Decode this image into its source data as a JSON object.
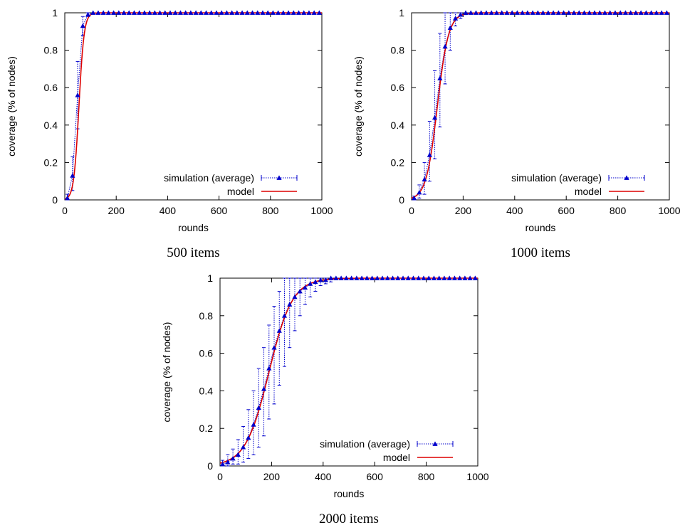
{
  "colors": {
    "simulation": "#0000cc",
    "model": "#dd0000",
    "axis": "#000000"
  },
  "chart_data": [
    {
      "type": "line",
      "caption": "500 items",
      "xlabel": "rounds",
      "ylabel": "coverage (% of nodes)",
      "xlim": [
        0,
        1000
      ],
      "ylim": [
        0,
        1
      ],
      "xticks": [
        "0",
        "200",
        "400",
        "600",
        "800",
        "1000"
      ],
      "yticks": [
        "0",
        "0.2",
        "0.4",
        "0.6",
        "0.8",
        "1"
      ],
      "grid": false,
      "legend_position": "bottom-right",
      "model_midpoint": 55,
      "model_rate": 0.099,
      "series": [
        {
          "name": "simulation (average)",
          "style": "points-with-error-bars",
          "x": [
            10,
            30,
            50,
            70,
            90,
            110,
            130,
            150,
            170,
            190,
            210,
            230,
            250,
            270,
            290,
            310,
            330,
            350,
            370,
            390,
            410,
            430,
            450,
            470,
            490,
            510,
            530,
            550,
            570,
            590,
            610,
            630,
            650,
            670,
            690,
            710,
            730,
            750,
            770,
            790,
            810,
            830,
            850,
            870,
            890,
            910,
            930,
            950,
            970,
            990
          ],
          "y": [
            0.01,
            0.13,
            0.56,
            0.93,
            0.99,
            1.0,
            1.0,
            1.0,
            1.0,
            1.0,
            1.0,
            1.0,
            1.0,
            1.0,
            1.0,
            1.0,
            1.0,
            1.0,
            1.0,
            1.0,
            1.0,
            1.0,
            1.0,
            1.0,
            1.0,
            1.0,
            1.0,
            1.0,
            1.0,
            1.0,
            1.0,
            1.0,
            1.0,
            1.0,
            1.0,
            1.0,
            1.0,
            1.0,
            1.0,
            1.0,
            1.0,
            1.0,
            1.0,
            1.0,
            1.0,
            1.0,
            1.0,
            1.0,
            1.0,
            1.0
          ],
          "err_low": [
            0.0,
            0.05,
            0.38,
            0.88,
            0.98
          ],
          "err_high": [
            0.03,
            0.23,
            0.74,
            0.98,
            1.0
          ]
        },
        {
          "name": "model",
          "style": "line"
        }
      ]
    },
    {
      "type": "line",
      "caption": "1000 items",
      "xlabel": "rounds",
      "ylabel": "coverage (% of nodes)",
      "xlim": [
        0,
        1000
      ],
      "ylim": [
        0,
        1
      ],
      "xticks": [
        "0",
        "200",
        "400",
        "600",
        "800",
        "1000"
      ],
      "yticks": [
        "0",
        "0.2",
        "0.4",
        "0.6",
        "0.8",
        "1"
      ],
      "grid": false,
      "legend_position": "bottom-right",
      "model_midpoint": 100,
      "model_rate": 0.046,
      "series": [
        {
          "name": "simulation (average)",
          "style": "points-with-error-bars",
          "x": [
            10,
            30,
            50,
            70,
            90,
            110,
            130,
            150,
            170,
            190,
            210,
            230,
            250,
            270,
            290,
            310,
            330,
            350,
            370,
            390,
            410,
            430,
            450,
            470,
            490,
            510,
            530,
            550,
            570,
            590,
            610,
            630,
            650,
            670,
            690,
            710,
            730,
            750,
            770,
            790,
            810,
            830,
            850,
            870,
            890,
            910,
            930,
            950,
            970,
            990
          ],
          "y": [
            0.01,
            0.04,
            0.11,
            0.24,
            0.44,
            0.65,
            0.82,
            0.92,
            0.97,
            0.99,
            1.0,
            1.0,
            1.0,
            1.0,
            1.0,
            1.0,
            1.0,
            1.0,
            1.0,
            1.0,
            1.0,
            1.0,
            1.0,
            1.0,
            1.0,
            1.0,
            1.0,
            1.0,
            1.0,
            1.0,
            1.0,
            1.0,
            1.0,
            1.0,
            1.0,
            1.0,
            1.0,
            1.0,
            1.0,
            1.0,
            1.0,
            1.0,
            1.0,
            1.0,
            1.0,
            1.0,
            1.0,
            1.0,
            1.0,
            1.0
          ],
          "err_low": [
            0.0,
            0.01,
            0.03,
            0.1,
            0.22,
            0.39,
            0.62,
            0.8,
            0.93,
            0.97,
            0.99
          ],
          "err_high": [
            0.02,
            0.08,
            0.2,
            0.42,
            0.69,
            0.89,
            1.0,
            1.0,
            1.0,
            1.0,
            1.0
          ]
        },
        {
          "name": "model",
          "style": "line"
        }
      ]
    },
    {
      "type": "line",
      "caption": "2000 items",
      "xlabel": "rounds",
      "ylabel": "coverage (% of nodes)",
      "xlim": [
        0,
        1000
      ],
      "ylim": [
        0,
        1
      ],
      "xticks": [
        "0",
        "200",
        "400",
        "600",
        "800",
        "1000"
      ],
      "yticks": [
        "0",
        "0.2",
        "0.4",
        "0.6",
        "0.8",
        "1"
      ],
      "grid": false,
      "legend_position": "bottom-right",
      "model_midpoint": 190,
      "model_rate": 0.022,
      "series": [
        {
          "name": "simulation (average)",
          "style": "points-with-error-bars",
          "x": [
            10,
            30,
            50,
            70,
            90,
            110,
            130,
            150,
            170,
            190,
            210,
            230,
            250,
            270,
            290,
            310,
            330,
            350,
            370,
            390,
            410,
            430,
            450,
            470,
            490,
            510,
            530,
            550,
            570,
            590,
            610,
            630,
            650,
            670,
            690,
            710,
            730,
            750,
            770,
            790,
            810,
            830,
            850,
            870,
            890,
            910,
            930,
            950,
            970,
            990
          ],
          "y": [
            0.01,
            0.02,
            0.04,
            0.06,
            0.1,
            0.15,
            0.22,
            0.31,
            0.41,
            0.52,
            0.63,
            0.72,
            0.8,
            0.86,
            0.9,
            0.93,
            0.95,
            0.97,
            0.98,
            0.99,
            0.99,
            1.0,
            1.0,
            1.0,
            1.0,
            1.0,
            1.0,
            1.0,
            1.0,
            1.0,
            1.0,
            1.0,
            1.0,
            1.0,
            1.0,
            1.0,
            1.0,
            1.0,
            1.0,
            1.0,
            1.0,
            1.0,
            1.0,
            1.0,
            1.0,
            1.0,
            1.0,
            1.0,
            1.0,
            1.0
          ],
          "err_low": [
            0.0,
            0.0,
            0.01,
            0.01,
            0.02,
            0.04,
            0.06,
            0.1,
            0.16,
            0.25,
            0.33,
            0.43,
            0.53,
            0.63,
            0.72,
            0.8,
            0.86,
            0.9,
            0.93,
            0.96,
            0.97,
            0.98
          ],
          "err_high": [
            0.03,
            0.06,
            0.09,
            0.14,
            0.21,
            0.3,
            0.4,
            0.52,
            0.63,
            0.75,
            0.85,
            0.93,
            1.0,
            1.0,
            1.0,
            1.0,
            1.0,
            1.0,
            1.0,
            1.0,
            1.0,
            1.0
          ]
        },
        {
          "name": "model",
          "style": "line"
        }
      ]
    }
  ]
}
